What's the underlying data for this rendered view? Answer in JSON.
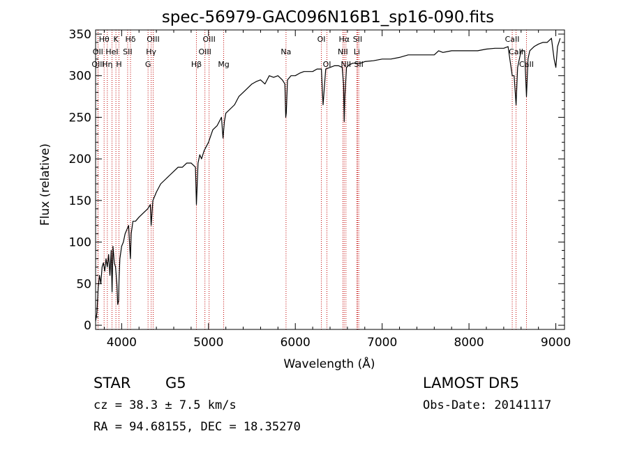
{
  "chart_data": {
    "type": "line",
    "title": "spec-56979-GAC096N16B1_sp16-090.fits",
    "xlabel": "Wavelength (Å)",
    "ylabel": "Flux (relative)",
    "xlim": [
      3700,
      9100
    ],
    "ylim": [
      -5,
      355
    ],
    "x_ticks": [
      4000,
      5000,
      6000,
      7000,
      8000,
      9000
    ],
    "y_ticks": [
      0,
      50,
      100,
      150,
      200,
      250,
      300,
      350
    ],
    "grid": false,
    "series": [
      {
        "color": "#000000",
        "x": [
          3700,
          3715,
          3730,
          3745,
          3760,
          3775,
          3790,
          3805,
          3820,
          3835,
          3850,
          3865,
          3880,
          3890,
          3900,
          3915,
          3930,
          3945,
          3955,
          3965,
          3970,
          3980,
          4000,
          4020,
          4040,
          4060,
          4080,
          4095,
          4101,
          4110,
          4130,
          4160,
          4200,
          4250,
          4300,
          4330,
          4340,
          4360,
          4400,
          4450,
          4500,
          4550,
          4600,
          4650,
          4700,
          4750,
          4800,
          4850,
          4861,
          4880,
          4900,
          4920,
          4950,
          5000,
          5050,
          5100,
          5150,
          5167,
          5183,
          5200,
          5250,
          5300,
          5350,
          5400,
          5450,
          5500,
          5550,
          5600,
          5650,
          5700,
          5750,
          5800,
          5850,
          5880,
          5890,
          5896,
          5910,
          5950,
          6000,
          6050,
          6100,
          6150,
          6200,
          6250,
          6300,
          6320,
          6350,
          6400,
          6450,
          6500,
          6540,
          6555,
          6563,
          6570,
          6590,
          6620,
          6660,
          6700,
          6750,
          6800,
          6900,
          7000,
          7100,
          7200,
          7300,
          7400,
          7500,
          7600,
          7650,
          7700,
          7800,
          7900,
          8000,
          8100,
          8200,
          8300,
          8400,
          8450,
          8498,
          8520,
          8542,
          8560,
          8600,
          8640,
          8662,
          8680,
          8700,
          8750,
          8800,
          8850,
          8900,
          8950,
          8980,
          9000,
          9020,
          9050
        ],
        "y": [
          5,
          15,
          45,
          60,
          50,
          70,
          75,
          65,
          80,
          70,
          85,
          60,
          90,
          40,
          95,
          75,
          70,
          50,
          25,
          30,
          55,
          80,
          95,
          100,
          110,
          115,
          120,
          90,
          80,
          110,
          125,
          125,
          130,
          135,
          140,
          145,
          120,
          150,
          160,
          170,
          175,
          180,
          185,
          190,
          190,
          195,
          195,
          190,
          145,
          195,
          205,
          200,
          210,
          220,
          235,
          240,
          250,
          225,
          245,
          255,
          260,
          265,
          275,
          280,
          285,
          290,
          293,
          295,
          290,
          300,
          298,
          300,
          295,
          290,
          250,
          255,
          295,
          300,
          300,
          303,
          305,
          305,
          305,
          308,
          308,
          265,
          308,
          310,
          312,
          312,
          310,
          290,
          245,
          275,
          310,
          313,
          315,
          315,
          315,
          317,
          318,
          320,
          320,
          322,
          325,
          325,
          325,
          325,
          330,
          328,
          330,
          330,
          330,
          330,
          332,
          333,
          333,
          335,
          300,
          300,
          265,
          310,
          330,
          330,
          275,
          320,
          330,
          335,
          338,
          340,
          340,
          345,
          320,
          310,
          335,
          345
        ]
      }
    ],
    "line_markers": [
      {
        "label": "OII",
        "wavelength": 3727,
        "row": 1
      },
      {
        "label": "OIII",
        "wavelength": 3729,
        "row": 2
      },
      {
        "label": "Hθ",
        "wavelength": 3798,
        "row": 0
      },
      {
        "label": "Hη",
        "wavelength": 3835,
        "row": 2
      },
      {
        "label": "HeI",
        "wavelength": 3889,
        "row": 1
      },
      {
        "label": "K",
        "wavelength": 3934,
        "row": 0
      },
      {
        "label": "H",
        "wavelength": 3969,
        "row": 2
      },
      {
        "label": "SII",
        "wavelength": 4069,
        "row": 1
      },
      {
        "label": "Hδ",
        "wavelength": 4102,
        "row": 0
      },
      {
        "label": "G",
        "wavelength": 4304,
        "row": 2
      },
      {
        "label": "Hγ",
        "wavelength": 4340,
        "row": 1
      },
      {
        "label": "OIII",
        "wavelength": 4363,
        "row": 0
      },
      {
        "label": "Hβ",
        "wavelength": 4861,
        "row": 2
      },
      {
        "label": "OIII",
        "wavelength": 4959,
        "row": 1
      },
      {
        "label": "OIII",
        "wavelength": 5007,
        "row": 0
      },
      {
        "label": "Mg",
        "wavelength": 5175,
        "row": 2
      },
      {
        "label": "Na",
        "wavelength": 5893,
        "row": 1
      },
      {
        "label": "OI",
        "wavelength": 6300,
        "row": 0
      },
      {
        "label": "OI",
        "wavelength": 6364,
        "row": 2
      },
      {
        "label": "NII",
        "wavelength": 6548,
        "row": 1
      },
      {
        "label": "Hα",
        "wavelength": 6563,
        "row": 0
      },
      {
        "label": "NII",
        "wavelength": 6583,
        "row": 2
      },
      {
        "label": "Li",
        "wavelength": 6708,
        "row": 1
      },
      {
        "label": "SII",
        "wavelength": 6717,
        "row": 0
      },
      {
        "label": "SII",
        "wavelength": 6731,
        "row": 2
      },
      {
        "label": "CaII",
        "wavelength": 8498,
        "row": 0
      },
      {
        "label": "CaII",
        "wavelength": 8542,
        "row": 1
      },
      {
        "label": "CaII",
        "wavelength": 8662,
        "row": 2
      }
    ],
    "marker_color": "#c00000"
  },
  "info": {
    "object_class": "STAR",
    "subclass": "G5",
    "survey": "LAMOST DR5",
    "cz": "cz = 38.3 ± 7.5 km/s",
    "obs_date": "Obs-Date: 20141117",
    "coords": "RA =  94.68155, DEC =  18.35270"
  }
}
